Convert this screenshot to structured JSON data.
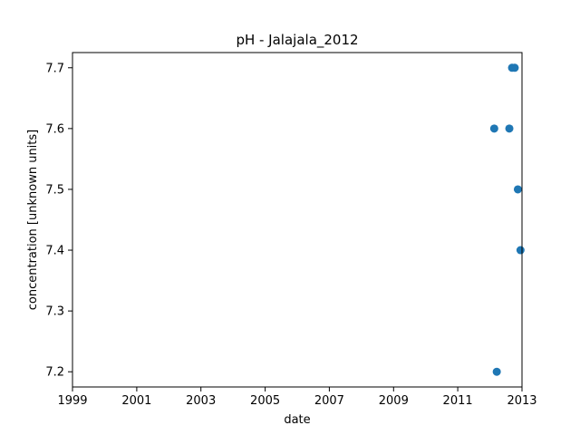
{
  "chart_data": {
    "type": "scatter",
    "title": "pH - Jalajala_2012",
    "xlabel": "date",
    "ylabel": "concentration [unknown units]",
    "x_axis_type": "date",
    "xlim": [
      "1999-01-01",
      "2013-01-01"
    ],
    "ylim": [
      7.175,
      7.725
    ],
    "x_ticks": [
      "1999",
      "2001",
      "2003",
      "2005",
      "2007",
      "2009",
      "2011",
      "2013"
    ],
    "y_ticks": [
      "7.2",
      "7.3",
      "7.4",
      "7.5",
      "7.6",
      "7.7"
    ],
    "grid": false,
    "marker_color": "#1f77b4",
    "series": [
      {
        "x": [
          "2012-02-20",
          "2012-03-20",
          "2012-08-10",
          "2012-09-10",
          "2012-10-10",
          "2012-11-15",
          "2012-12-15"
        ],
        "y": [
          7.6,
          7.2,
          7.6,
          7.7,
          7.7,
          7.5,
          7.4
        ]
      }
    ]
  }
}
